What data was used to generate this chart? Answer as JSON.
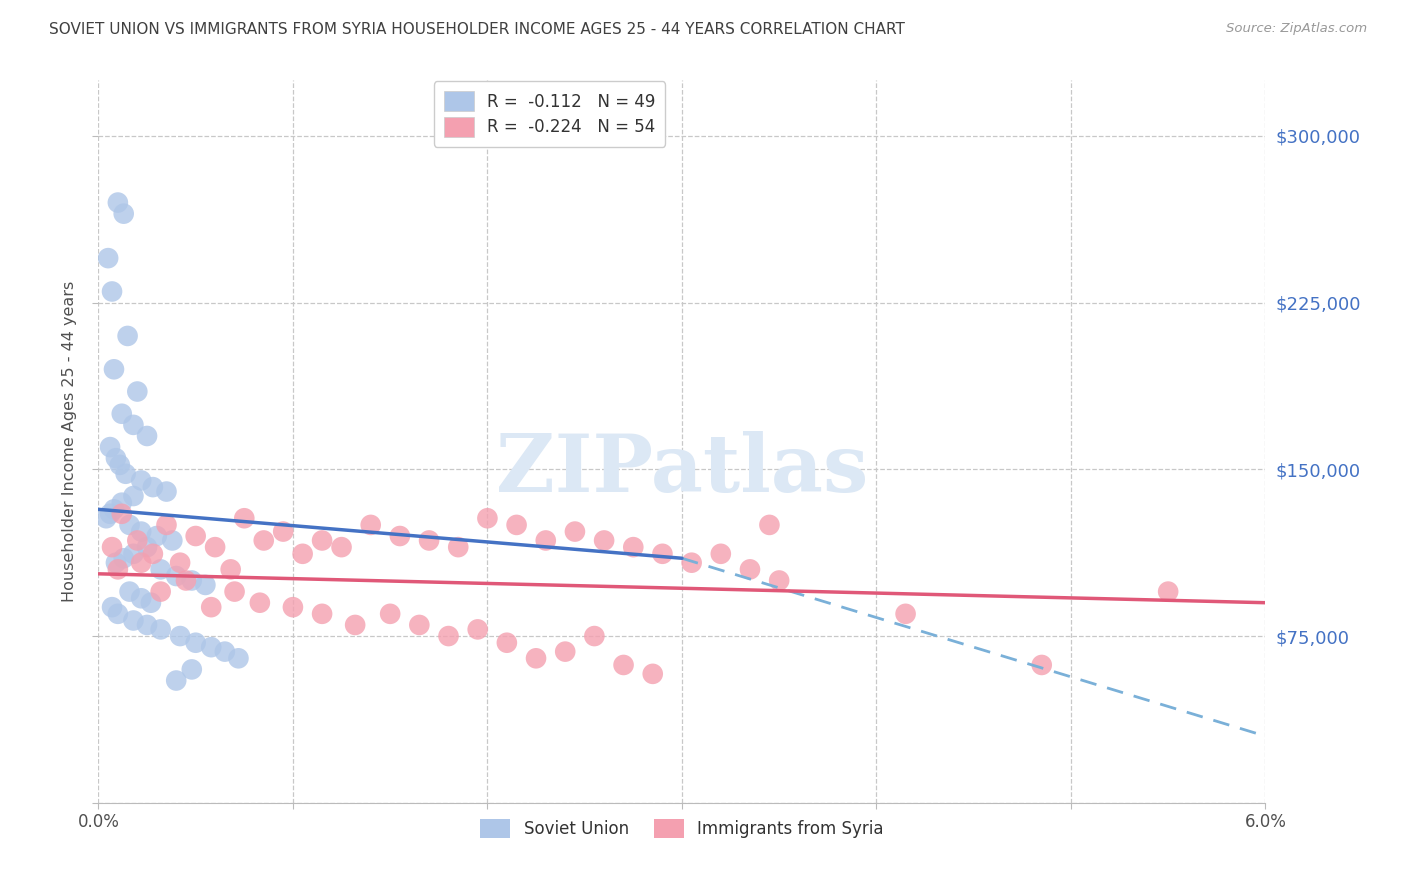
{
  "title": "SOVIET UNION VS IMMIGRANTS FROM SYRIA HOUSEHOLDER INCOME AGES 25 - 44 YEARS CORRELATION CHART",
  "source": "Source: ZipAtlas.com",
  "ylabel": "Householder Income Ages 25 - 44 years",
  "xlim": [
    0.0,
    6.0
  ],
  "ylim": [
    0,
    325000
  ],
  "yticks": [
    0,
    75000,
    150000,
    225000,
    300000
  ],
  "xticks": [
    0.0,
    1.0,
    2.0,
    3.0,
    4.0,
    5.0,
    6.0
  ],
  "watermark_text": "ZIPatlas",
  "soviet_union_x": [
    0.1,
    0.13,
    0.05,
    0.07,
    0.15,
    0.08,
    0.2,
    0.12,
    0.18,
    0.25,
    0.06,
    0.09,
    0.11,
    0.14,
    0.22,
    0.28,
    0.35,
    0.18,
    0.12,
    0.08,
    0.06,
    0.04,
    0.16,
    0.22,
    0.3,
    0.38,
    0.25,
    0.18,
    0.13,
    0.09,
    0.32,
    0.4,
    0.48,
    0.55,
    0.16,
    0.22,
    0.27,
    0.07,
    0.1,
    0.18,
    0.25,
    0.32,
    0.42,
    0.5,
    0.58,
    0.65,
    0.72,
    0.48,
    0.4
  ],
  "soviet_union_y": [
    270000,
    265000,
    245000,
    230000,
    210000,
    195000,
    185000,
    175000,
    170000,
    165000,
    160000,
    155000,
    152000,
    148000,
    145000,
    142000,
    140000,
    138000,
    135000,
    132000,
    130000,
    128000,
    125000,
    122000,
    120000,
    118000,
    115000,
    112000,
    110000,
    108000,
    105000,
    102000,
    100000,
    98000,
    95000,
    92000,
    90000,
    88000,
    85000,
    82000,
    80000,
    78000,
    75000,
    72000,
    70000,
    68000,
    65000,
    60000,
    55000
  ],
  "syria_x": [
    0.07,
    0.12,
    0.2,
    0.28,
    0.35,
    0.42,
    0.5,
    0.6,
    0.68,
    0.75,
    0.85,
    0.95,
    1.05,
    1.15,
    1.25,
    1.4,
    1.55,
    1.7,
    1.85,
    2.0,
    2.15,
    2.3,
    2.45,
    2.6,
    2.75,
    2.9,
    3.05,
    3.2,
    3.35,
    3.5,
    0.1,
    0.22,
    0.32,
    0.45,
    0.58,
    0.7,
    0.83,
    1.0,
    1.15,
    1.32,
    1.5,
    1.65,
    1.8,
    1.95,
    2.1,
    2.25,
    2.4,
    2.55,
    2.7,
    2.85,
    3.45,
    4.15,
    4.85,
    5.5
  ],
  "syria_y": [
    115000,
    130000,
    118000,
    112000,
    125000,
    108000,
    120000,
    115000,
    105000,
    128000,
    118000,
    122000,
    112000,
    118000,
    115000,
    125000,
    120000,
    118000,
    115000,
    128000,
    125000,
    118000,
    122000,
    118000,
    115000,
    112000,
    108000,
    112000,
    105000,
    100000,
    105000,
    108000,
    95000,
    100000,
    88000,
    95000,
    90000,
    88000,
    85000,
    80000,
    85000,
    80000,
    75000,
    78000,
    72000,
    65000,
    68000,
    75000,
    62000,
    58000,
    125000,
    85000,
    62000,
    95000
  ],
  "blue_line_x0": 0.0,
  "blue_line_x1": 3.0,
  "blue_line_y0": 132000,
  "blue_line_y1": 110000,
  "pink_line_x0": 0.0,
  "pink_line_x1": 6.0,
  "pink_line_y0": 103000,
  "pink_line_y1": 90000,
  "dashed_x0": 3.0,
  "dashed_x1": 6.0,
  "dashed_y0": 110000,
  "dashed_y1": 30000,
  "blue_line_color": "#4472c4",
  "pink_line_color": "#e05878",
  "dashed_line_color": "#7ab0d8",
  "scatter_blue_color": "#aec6e8",
  "scatter_pink_color": "#f4a0b0",
  "background_color": "#ffffff",
  "grid_color": "#c8c8c8",
  "title_color": "#404040",
  "axis_label_color": "#505050",
  "right_axis_color": "#4472c4",
  "watermark_color": "#dce8f5",
  "legend_blue_label": "R =  -0.112   N = 49",
  "legend_pink_label": "R =  -0.224   N = 54",
  "bottom_legend_blue": "Soviet Union",
  "bottom_legend_pink": "Immigrants from Syria"
}
